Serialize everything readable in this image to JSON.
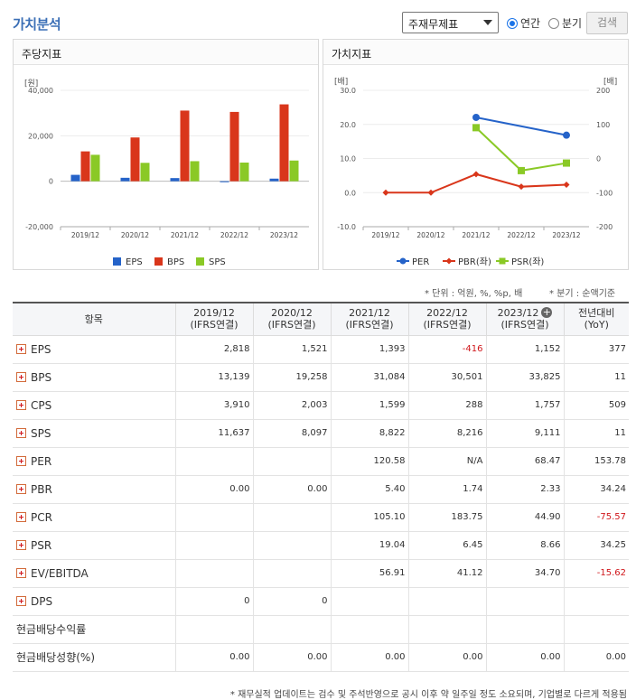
{
  "header": {
    "title": "가치분석",
    "select_value": "주재무제표",
    "radio_annual": "연간",
    "radio_quarter": "분기",
    "search_button": "검색"
  },
  "left_panel": {
    "title": "주당지표"
  },
  "right_panel": {
    "title": "가치지표"
  },
  "colors": {
    "blue": "#2563c9",
    "red": "#d9361b",
    "green": "#8ac926"
  },
  "chart_data": [
    {
      "type": "bar",
      "ylabel": "[원]",
      "ylim": [
        -20000,
        40000
      ],
      "yticks": [
        "40,000",
        "20,000",
        "0",
        "-20,000"
      ],
      "categories": [
        "2019/12",
        "2020/12",
        "2021/12",
        "2022/12",
        "2023/12"
      ],
      "series": [
        {
          "name": "EPS",
          "color": "#2563c9",
          "values": [
            2818,
            1521,
            1393,
            -416,
            1152
          ]
        },
        {
          "name": "BPS",
          "color": "#d9361b",
          "values": [
            13139,
            19258,
            31084,
            30501,
            33825
          ]
        },
        {
          "name": "SPS",
          "color": "#8ac926",
          "values": [
            11637,
            8097,
            8822,
            8216,
            9111
          ]
        }
      ],
      "legend": "bottom",
      "grid": true
    },
    {
      "type": "line",
      "ylabel_left": "[배]",
      "ylabel_right": "[배]",
      "ylim_left": [
        -10,
        30
      ],
      "ylim_right": [
        -200,
        200
      ],
      "yticks_left": [
        "30.0",
        "20.0",
        "10.0",
        "0.0",
        "-10.0"
      ],
      "yticks_right": [
        "200",
        "100",
        "0",
        "-100",
        "-200"
      ],
      "categories": [
        "2019/12",
        "2020/12",
        "2021/12",
        "2022/12",
        "2023/12"
      ],
      "series": [
        {
          "name": "PER",
          "axis": "right",
          "color": "#2563c9",
          "marker": "circle",
          "values": [
            null,
            null,
            120.58,
            null,
            68.47
          ]
        },
        {
          "name": "PBR(좌)",
          "axis": "left",
          "color": "#d9361b",
          "marker": "diamond",
          "values": [
            0.0,
            0.0,
            5.4,
            1.74,
            2.33
          ]
        },
        {
          "name": "PSR(좌)",
          "axis": "left",
          "color": "#8ac926",
          "marker": "square",
          "values": [
            null,
            null,
            19.04,
            6.45,
            8.66
          ]
        }
      ],
      "legend": "bottom",
      "grid": true
    }
  ],
  "notes": {
    "unit": "* 단위 : 억원, %, %p, 배",
    "quarter": "* 분기 : 순액기준"
  },
  "table": {
    "col_item": "항목",
    "columns": [
      {
        "year": "2019/12",
        "basis": "(IFRS연결)"
      },
      {
        "year": "2020/12",
        "basis": "(IFRS연결)"
      },
      {
        "year": "2021/12",
        "basis": "(IFRS연결)"
      },
      {
        "year": "2022/12",
        "basis": "(IFRS연결)"
      },
      {
        "year": "2023/12",
        "basis": "(IFRS연결)"
      }
    ],
    "col_yoy": "전년대비",
    "col_yoy_sub": "(YoY)",
    "rows": [
      {
        "label": "EPS",
        "values": [
          "2,818",
          "1,521",
          "1,393",
          "-416",
          "1,152",
          "377"
        ],
        "expandable": true
      },
      {
        "label": "BPS",
        "values": [
          "13,139",
          "19,258",
          "31,084",
          "30,501",
          "33,825",
          "11"
        ],
        "expandable": true
      },
      {
        "label": "CPS",
        "values": [
          "3,910",
          "2,003",
          "1,599",
          "288",
          "1,757",
          "509"
        ],
        "expandable": true
      },
      {
        "label": "SPS",
        "values": [
          "11,637",
          "8,097",
          "8,822",
          "8,216",
          "9,111",
          "11"
        ],
        "expandable": true
      },
      {
        "label": "PER",
        "values": [
          "",
          "",
          "120.58",
          "N/A",
          "68.47",
          "153.78"
        ],
        "expandable": true
      },
      {
        "label": "PBR",
        "values": [
          "0.00",
          "0.00",
          "5.40",
          "1.74",
          "2.33",
          "34.24"
        ],
        "expandable": true
      },
      {
        "label": "PCR",
        "values": [
          "",
          "",
          "105.10",
          "183.75",
          "44.90",
          "-75.57"
        ],
        "expandable": true
      },
      {
        "label": "PSR",
        "values": [
          "",
          "",
          "19.04",
          "6.45",
          "8.66",
          "34.25"
        ],
        "expandable": true
      },
      {
        "label": "EV/EBITDA",
        "values": [
          "",
          "",
          "56.91",
          "41.12",
          "34.70",
          "-15.62"
        ],
        "expandable": true
      },
      {
        "label": "DPS",
        "values": [
          "0",
          "0",
          "",
          "",
          "",
          ""
        ],
        "expandable": true
      },
      {
        "label": "현금배당수익률",
        "values": [
          "",
          "",
          "",
          "",
          "",
          ""
        ],
        "expandable": false
      },
      {
        "label": "현금배당성향(%)",
        "values": [
          "0.00",
          "0.00",
          "0.00",
          "0.00",
          "0.00",
          "0.00"
        ],
        "expandable": false
      }
    ]
  },
  "footnote": "* 재무실적 업데이트는 검수 및 주석반영으로 공시 이후 약 일주일 정도 소요되며, 기업별로 다르게 적용됨"
}
